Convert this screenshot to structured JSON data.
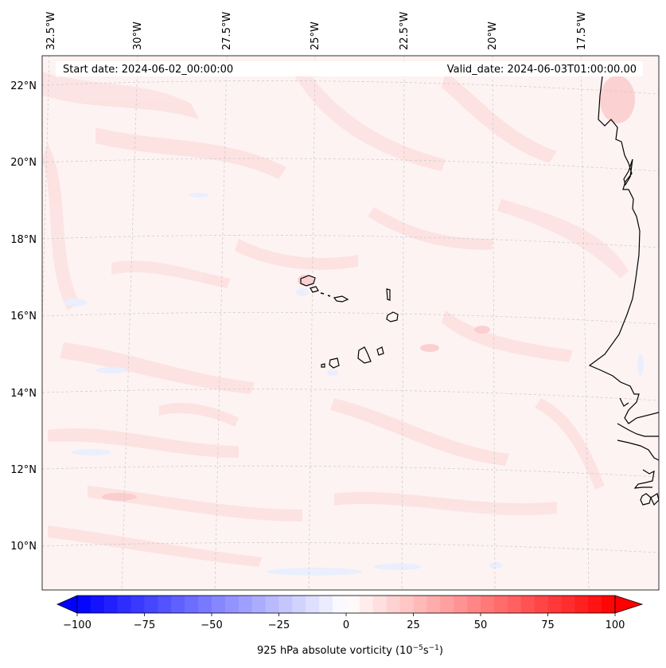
{
  "header": {
    "start_date": "Start date: 2024-06-02_00:00:00",
    "valid_date": "Valid_date: 2024-06-03T01:00:00.00"
  },
  "longitude_labels": [
    "32.5°W",
    "30°W",
    "27.5°W",
    "25°W",
    "22.5°W",
    "20°W",
    "17.5°W"
  ],
  "latitude_labels": [
    "22°N",
    "20°N",
    "18°N",
    "16°N",
    "14°N",
    "12°N",
    "10°N"
  ],
  "colorbar": {
    "label": "925 hPa absolute vorticity (10",
    "label_exp1": "−5",
    "label_mid": "s",
    "label_exp2": "−1",
    "label_end": ")",
    "tick_labels": [
      "−100",
      "−75",
      "−50",
      "−25",
      "0",
      "25",
      "50",
      "75",
      "100"
    ],
    "range": [
      -100,
      100
    ],
    "colormap": "bwr",
    "extend": "both"
  },
  "colors": {
    "negative": "#0000ff",
    "zero": "#ffffff",
    "positive": "#ff0000",
    "coastline": "#000000",
    "gridline": "#c8c8c8"
  }
}
